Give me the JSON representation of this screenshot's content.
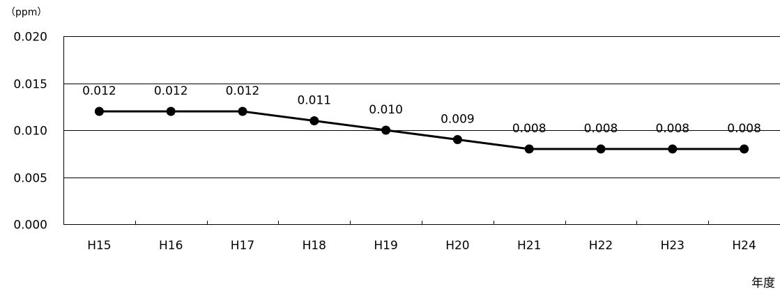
{
  "chart_data": {
    "type": "line",
    "title": "",
    "ylabel": "（ppm）",
    "xlabel": "年度",
    "categories": [
      "H15",
      "H16",
      "H17",
      "H18",
      "H19",
      "H20",
      "H21",
      "H22",
      "H23",
      "H24"
    ],
    "series": [
      {
        "values": [
          0.012,
          0.012,
          0.012,
          0.011,
          0.01,
          0.009,
          0.008,
          0.008,
          0.008,
          0.008
        ],
        "labels": [
          "0.012",
          "0.012",
          "0.012",
          "0.011",
          "0.010",
          "0.009",
          "0.008",
          "0.008",
          "0.008",
          "0.008"
        ]
      }
    ],
    "ylim": [
      0,
      0.02
    ],
    "yticks": [
      "0.000",
      "0.005",
      "0.010",
      "0.015",
      "0.020"
    ],
    "grid": true,
    "legend": "none",
    "colors": {
      "line": "#000000",
      "marker": "#000000",
      "grid": "#000000",
      "axis": "#000000"
    }
  }
}
